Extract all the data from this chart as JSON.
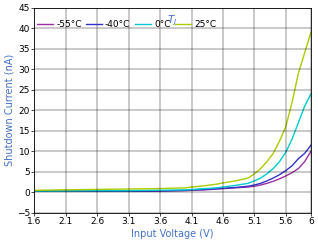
{
  "xlabel": "Input Voltage (V)",
  "ylabel": "Shutdown Current (nA)",
  "xlim": [
    1.6,
    6.0
  ],
  "ylim": [
    -5,
    45
  ],
  "yticks": [
    -5,
    0,
    5,
    10,
    15,
    20,
    25,
    30,
    35,
    40,
    45
  ],
  "xticks": [
    1.6,
    2.1,
    2.6,
    3.1,
    3.6,
    4.1,
    4.6,
    5.1,
    5.6,
    6.0
  ],
  "xtick_labels": [
    "1.6",
    "2.1",
    "2.6",
    "3.1",
    "3.6",
    "4.1",
    "4.6",
    "5.1",
    "5.6",
    "6"
  ],
  "series": [
    {
      "label": "-55°C",
      "color": "#9B30A0",
      "points": [
        [
          1.6,
          0.3
        ],
        [
          2.0,
          0.3
        ],
        [
          2.5,
          0.3
        ],
        [
          3.0,
          0.3
        ],
        [
          3.5,
          0.3
        ],
        [
          4.0,
          0.4
        ],
        [
          4.1,
          0.5
        ],
        [
          4.3,
          0.6
        ],
        [
          4.5,
          0.8
        ],
        [
          4.6,
          0.9
        ],
        [
          4.8,
          1.1
        ],
        [
          5.0,
          1.3
        ],
        [
          5.1,
          1.5
        ],
        [
          5.2,
          1.8
        ],
        [
          5.3,
          2.2
        ],
        [
          5.4,
          2.7
        ],
        [
          5.5,
          3.3
        ],
        [
          5.6,
          4.0
        ],
        [
          5.7,
          4.8
        ],
        [
          5.8,
          5.8
        ],
        [
          5.9,
          7.5
        ],
        [
          6.0,
          10.0
        ]
      ]
    },
    {
      "label": "-40°C",
      "color": "#3333CC",
      "points": [
        [
          1.6,
          0.3
        ],
        [
          2.0,
          0.3
        ],
        [
          2.5,
          0.3
        ],
        [
          3.0,
          0.3
        ],
        [
          3.5,
          0.3
        ],
        [
          4.0,
          0.5
        ],
        [
          4.1,
          0.6
        ],
        [
          4.3,
          0.7
        ],
        [
          4.5,
          0.9
        ],
        [
          4.6,
          1.0
        ],
        [
          4.8,
          1.2
        ],
        [
          5.0,
          1.5
        ],
        [
          5.1,
          1.8
        ],
        [
          5.2,
          2.2
        ],
        [
          5.3,
          2.8
        ],
        [
          5.4,
          3.5
        ],
        [
          5.5,
          4.3
        ],
        [
          5.6,
          5.3
        ],
        [
          5.7,
          6.5
        ],
        [
          5.8,
          8.2
        ],
        [
          5.9,
          9.5
        ],
        [
          6.0,
          11.5
        ]
      ]
    },
    {
      "label": "0°C",
      "color": "#00CCCC",
      "points": [
        [
          1.6,
          0.3
        ],
        [
          2.0,
          0.3
        ],
        [
          2.5,
          0.4
        ],
        [
          3.0,
          0.4
        ],
        [
          3.5,
          0.5
        ],
        [
          4.0,
          0.6
        ],
        [
          4.1,
          0.7
        ],
        [
          4.3,
          0.9
        ],
        [
          4.5,
          1.1
        ],
        [
          4.6,
          1.3
        ],
        [
          4.8,
          1.7
        ],
        [
          5.0,
          2.2
        ],
        [
          5.1,
          2.8
        ],
        [
          5.2,
          3.5
        ],
        [
          5.3,
          4.5
        ],
        [
          5.4,
          5.8
        ],
        [
          5.5,
          7.5
        ],
        [
          5.6,
          9.8
        ],
        [
          5.7,
          13.0
        ],
        [
          5.8,
          17.0
        ],
        [
          5.9,
          21.0
        ],
        [
          6.0,
          24.0
        ]
      ]
    },
    {
      "label": "25°C",
      "color": "#AACC00",
      "points": [
        [
          1.6,
          0.5
        ],
        [
          2.0,
          0.6
        ],
        [
          2.5,
          0.7
        ],
        [
          3.0,
          0.8
        ],
        [
          3.5,
          0.9
        ],
        [
          4.0,
          1.1
        ],
        [
          4.1,
          1.3
        ],
        [
          4.3,
          1.6
        ],
        [
          4.5,
          2.0
        ],
        [
          4.6,
          2.3
        ],
        [
          4.8,
          2.8
        ],
        [
          5.0,
          3.5
        ],
        [
          5.1,
          4.5
        ],
        [
          5.2,
          5.8
        ],
        [
          5.3,
          7.5
        ],
        [
          5.4,
          9.5
        ],
        [
          5.5,
          12.5
        ],
        [
          5.6,
          16.0
        ],
        [
          5.7,
          22.0
        ],
        [
          5.8,
          29.0
        ],
        [
          5.9,
          34.0
        ],
        [
          6.0,
          39.0
        ]
      ]
    }
  ],
  "label_fontsize": 7,
  "tick_fontsize": 6.5,
  "legend_fontsize": 6.5,
  "background_color": "#FFFFFF",
  "grid_color": "#000000",
  "axis_color": "#000000",
  "xlabel_color": "#4472C4",
  "ylabel_color": "#4472C4",
  "legend_title_color": "#4472C4"
}
